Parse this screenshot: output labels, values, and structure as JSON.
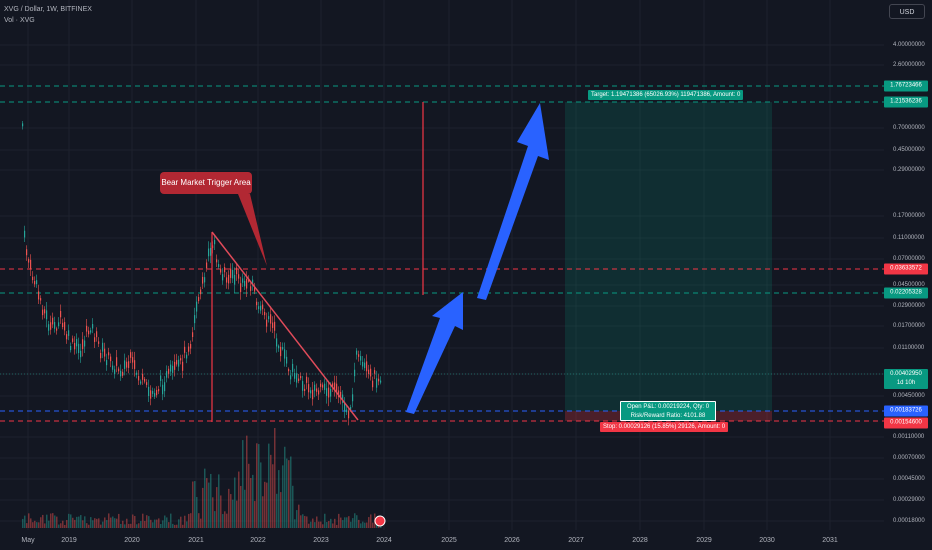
{
  "header": {
    "symbol_line": "XVG / Dollar, 1W, BITFINEX",
    "volume_label": "Vol · XVG"
  },
  "currency_button": "USD",
  "price_ticks": [
    "4.00000000",
    "2.60000000",
    "0.70000000",
    "0.45000000",
    "0.29000000",
    "0.17000000",
    "0.11000000",
    "0.07000000",
    "0.04500000",
    "0.02900000",
    "0.01700000",
    "0.01100000",
    "0.00700000",
    "0.00450000",
    "0.00110000",
    "0.00070000",
    "0.00045000",
    "0.00029000",
    "0.00018000"
  ],
  "price_labels": {
    "p1": {
      "text": "1.76723466",
      "color": "#089981"
    },
    "p2": {
      "text": "1.21536236",
      "color": "#089981"
    },
    "p3": {
      "text": "0.03633572",
      "color": "#f23645"
    },
    "p4": {
      "text": "0.02205328",
      "color": "#089981"
    },
    "p5": {
      "text": "0.00402950",
      "color": "#089981"
    },
    "p5_sub": "1d 10h",
    "p6": {
      "text": "0.00183726",
      "color": "#2962ff"
    },
    "p7": {
      "text": "0.00154600",
      "color": "#f23645"
    }
  },
  "time_axis": [
    "May",
    "2019",
    "2020",
    "2021",
    "2022",
    "2023",
    "2024",
    "2025",
    "2026",
    "2027",
    "2028",
    "2029",
    "2030",
    "2031"
  ],
  "position_tool": {
    "target_label": "Target: 1.19471386 (65026.93%) 119471386, Amount: 0",
    "pnl_line1": "Open P&L: 0.00219224, Qty: 0",
    "pnl_line2": "Risk/Reward Ratio: 4101.88",
    "stop_label": "Stop: 0.00029126 (15.85%) 29126, Amount: 0"
  },
  "annotation": {
    "text": "Bear Market Trigger Area",
    "color": "#b22833"
  },
  "colors": {
    "background": "#131722",
    "up": "#26a69a",
    "down": "#ef5350",
    "arrow": "#2962ff",
    "target_zone": "#089981",
    "stop_zone": "#f23645"
  }
}
